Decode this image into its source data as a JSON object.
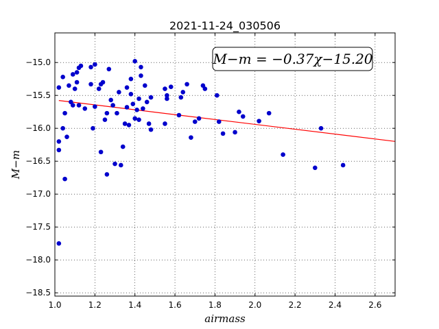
{
  "chart_data": {
    "type": "scatter",
    "title": "2021-11-24_030506",
    "xlabel": "airmass",
    "ylabel": "M−m",
    "xlim": [
      1.0,
      2.7
    ],
    "ylim": [
      -18.55,
      -14.55
    ],
    "y_inverted": true,
    "grid": true,
    "x_ticks": [
      "1.0",
      "1.2",
      "1.4",
      "1.6",
      "1.8",
      "2.0",
      "2.2",
      "2.4",
      "2.6"
    ],
    "y_ticks": [
      "−15.0",
      "−15.5",
      "−16.0",
      "−16.5",
      "−17.0",
      "−17.5",
      "−18.0",
      "−18.5"
    ],
    "annotation": "M−m = −0.37χ−15.20",
    "fit": {
      "slope": -0.37,
      "intercept": -15.2,
      "x_range": [
        1.02,
        2.7
      ],
      "color": "#ff0000"
    },
    "series": [
      {
        "color": "#0000cc",
        "points": [
          [
            1.02,
            -17.75
          ],
          [
            1.02,
            -16.33
          ],
          [
            1.02,
            -16.2
          ],
          [
            1.02,
            -15.38
          ],
          [
            1.04,
            -16.0
          ],
          [
            1.04,
            -15.22
          ],
          [
            1.05,
            -16.77
          ],
          [
            1.05,
            -15.77
          ],
          [
            1.06,
            -16.13
          ],
          [
            1.07,
            -15.35
          ],
          [
            1.08,
            -15.6
          ],
          [
            1.09,
            -15.65
          ],
          [
            1.09,
            -15.18
          ],
          [
            1.1,
            -15.4
          ],
          [
            1.11,
            -15.15
          ],
          [
            1.11,
            -15.3
          ],
          [
            1.12,
            -15.65
          ],
          [
            1.12,
            -15.08
          ],
          [
            1.13,
            -15.05
          ],
          [
            1.15,
            -15.7
          ],
          [
            1.18,
            -15.07
          ],
          [
            1.18,
            -15.33
          ],
          [
            1.19,
            -16.0
          ],
          [
            1.2,
            -15.03
          ],
          [
            1.2,
            -15.67
          ],
          [
            1.22,
            -15.4
          ],
          [
            1.23,
            -16.36
          ],
          [
            1.23,
            -15.33
          ],
          [
            1.24,
            -15.3
          ],
          [
            1.25,
            -15.87
          ],
          [
            1.26,
            -16.7
          ],
          [
            1.26,
            -15.77
          ],
          [
            1.27,
            -15.1
          ],
          [
            1.28,
            -15.57
          ],
          [
            1.29,
            -15.65
          ],
          [
            1.3,
            -16.54
          ],
          [
            1.31,
            -15.77
          ],
          [
            1.32,
            -15.45
          ],
          [
            1.33,
            -16.56
          ],
          [
            1.34,
            -16.28
          ],
          [
            1.35,
            -15.93
          ],
          [
            1.36,
            -15.68
          ],
          [
            1.36,
            -15.38
          ],
          [
            1.37,
            -15.95
          ],
          [
            1.38,
            -15.48
          ],
          [
            1.38,
            -15.25
          ],
          [
            1.39,
            -15.63
          ],
          [
            1.4,
            -14.98
          ],
          [
            1.4,
            -15.85
          ],
          [
            1.41,
            -15.72
          ],
          [
            1.42,
            -15.55
          ],
          [
            1.42,
            -15.87
          ],
          [
            1.43,
            -15.07
          ],
          [
            1.43,
            -15.2
          ],
          [
            1.44,
            -15.7
          ],
          [
            1.45,
            -15.35
          ],
          [
            1.46,
            -15.6
          ],
          [
            1.47,
            -15.93
          ],
          [
            1.48,
            -16.02
          ],
          [
            1.48,
            -15.53
          ],
          [
            1.55,
            -15.93
          ],
          [
            1.55,
            -15.4
          ],
          [
            1.56,
            -15.55
          ],
          [
            1.56,
            -15.5
          ],
          [
            1.58,
            -15.37
          ],
          [
            1.62,
            -15.8
          ],
          [
            1.63,
            -15.53
          ],
          [
            1.64,
            -15.45
          ],
          [
            1.66,
            -15.33
          ],
          [
            1.68,
            -16.14
          ],
          [
            1.7,
            -15.9
          ],
          [
            1.72,
            -15.85
          ],
          [
            1.74,
            -15.35
          ],
          [
            1.75,
            -15.4
          ],
          [
            1.81,
            -15.5
          ],
          [
            1.82,
            -15.9
          ],
          [
            1.84,
            -16.08
          ],
          [
            1.9,
            -16.06
          ],
          [
            1.92,
            -15.75
          ],
          [
            1.94,
            -15.82
          ],
          [
            2.02,
            -15.89
          ],
          [
            2.07,
            -15.77
          ],
          [
            2.14,
            -16.4
          ],
          [
            2.3,
            -16.6
          ],
          [
            2.33,
            -16.0
          ],
          [
            2.44,
            -16.56
          ]
        ]
      }
    ]
  }
}
